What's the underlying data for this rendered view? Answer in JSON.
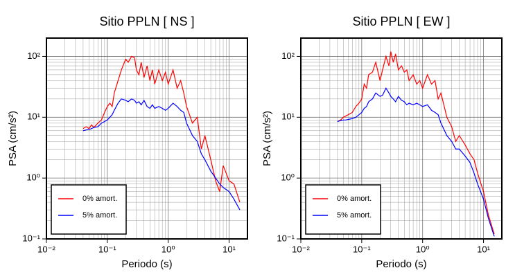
{
  "chart_data": [
    {
      "type": "line",
      "title": "Sitio PPLN [ NS ]",
      "x_label": "Periodo (s)",
      "y_label": "PSA (cm/s²)",
      "log_x": true,
      "log_y": true,
      "grid": true,
      "legend": "lower left",
      "xlim": [
        0.01,
        20
      ],
      "ylim": [
        0.1,
        200
      ],
      "xticks": [
        {
          "value": 0.01,
          "label": "10⁻²"
        },
        {
          "value": 0.1,
          "label": "10⁻¹"
        },
        {
          "value": 1,
          "label": "10⁰"
        },
        {
          "value": 10,
          "label": "10¹"
        }
      ],
      "yticks": [
        {
          "value": 0.1,
          "label": "10⁻¹"
        },
        {
          "value": 1,
          "label": "10⁰"
        },
        {
          "value": 10,
          "label": "10¹"
        },
        {
          "value": 100,
          "label": "10²"
        }
      ],
      "x": [
        0.04,
        0.045,
        0.05,
        0.055,
        0.06,
        0.07,
        0.08,
        0.09,
        0.1,
        0.11,
        0.12,
        0.13,
        0.15,
        0.17,
        0.2,
        0.22,
        0.25,
        0.28,
        0.3,
        0.33,
        0.36,
        0.4,
        0.45,
        0.5,
        0.55,
        0.6,
        0.7,
        0.8,
        0.9,
        1.0,
        1.2,
        1.4,
        1.6,
        1.8,
        2.0,
        2.5,
        3.0,
        3.5,
        4.0,
        5.0,
        6.0,
        7.0,
        8.0,
        10,
        12,
        15
      ],
      "series": [
        {
          "name": "0% amort.",
          "color": "#ff0000",
          "values": [
            6.5,
            7,
            6.5,
            7.5,
            6.8,
            8,
            9,
            12,
            15,
            17,
            15,
            25,
            40,
            60,
            90,
            80,
            100,
            95,
            60,
            50,
            80,
            45,
            70,
            40,
            60,
            35,
            60,
            40,
            55,
            35,
            60,
            30,
            40,
            25,
            15,
            8,
            10,
            3,
            5,
            2,
            0.9,
            0.6,
            1.6,
            0.9,
            0.8,
            0.4
          ]
        },
        {
          "name": "5% amort.",
          "color": "#0000ff",
          "values": [
            6,
            6.2,
            6.3,
            6.5,
            6.8,
            7,
            8,
            8.5,
            9,
            10,
            11,
            13,
            17,
            20,
            19,
            18,
            20,
            19,
            17,
            18,
            16,
            19,
            15,
            14,
            16,
            14,
            15,
            14,
            13,
            14,
            17,
            15,
            13,
            12,
            8,
            5,
            4,
            2.5,
            2,
            1.3,
            1.0,
            0.8,
            0.7,
            0.6,
            0.45,
            0.3
          ]
        }
      ]
    },
    {
      "type": "line",
      "title": "Sitio PPLN [ EW ]",
      "x_label": "Periodo (s)",
      "y_label": "PSA (cm/s²)",
      "log_x": true,
      "log_y": true,
      "grid": true,
      "legend": "lower left",
      "xlim": [
        0.01,
        20
      ],
      "ylim": [
        0.1,
        200
      ],
      "xticks": [
        {
          "value": 0.01,
          "label": "10⁻²"
        },
        {
          "value": 0.1,
          "label": "10⁻¹"
        },
        {
          "value": 1,
          "label": "10⁰"
        },
        {
          "value": 10,
          "label": "10¹"
        }
      ],
      "yticks": [
        {
          "value": 0.1,
          "label": "10⁻¹"
        },
        {
          "value": 1,
          "label": "10⁰"
        },
        {
          "value": 10,
          "label": "10¹"
        },
        {
          "value": 100,
          "label": "10²"
        }
      ],
      "x": [
        0.04,
        0.045,
        0.05,
        0.055,
        0.06,
        0.07,
        0.08,
        0.09,
        0.1,
        0.11,
        0.12,
        0.13,
        0.15,
        0.17,
        0.2,
        0.22,
        0.25,
        0.28,
        0.3,
        0.33,
        0.36,
        0.4,
        0.45,
        0.5,
        0.55,
        0.6,
        0.7,
        0.8,
        0.9,
        1.0,
        1.2,
        1.4,
        1.6,
        1.8,
        2.0,
        2.5,
        3.0,
        3.5,
        4.0,
        5.0,
        6.0,
        7.0,
        8.0,
        10,
        12,
        15
      ],
      "series": [
        {
          "name": "0% amort.",
          "color": "#ff0000",
          "values": [
            8.5,
            9,
            10,
            10.5,
            11,
            12,
            15,
            17,
            20,
            35,
            30,
            50,
            55,
            80,
            40,
            60,
            100,
            70,
            120,
            80,
            110,
            60,
            70,
            55,
            60,
            40,
            50,
            35,
            40,
            30,
            50,
            35,
            40,
            20,
            25,
            10,
            7,
            4,
            5,
            3.5,
            2.5,
            2,
            1.2,
            0.6,
            0.25,
            0.12
          ]
        },
        {
          "name": "5% amort.",
          "color": "#0000ff",
          "values": [
            8.5,
            8.8,
            9,
            9,
            9.2,
            9.5,
            10,
            11,
            12,
            14,
            15,
            18,
            20,
            25,
            22,
            23,
            30,
            25,
            22,
            20,
            18,
            22,
            19,
            18,
            16,
            17,
            16,
            17,
            16,
            15,
            16,
            13,
            12,
            11,
            8,
            5,
            4,
            3,
            3,
            2.3,
            1.8,
            1.2,
            0.8,
            0.45,
            0.22,
            0.11
          ]
        }
      ]
    }
  ]
}
